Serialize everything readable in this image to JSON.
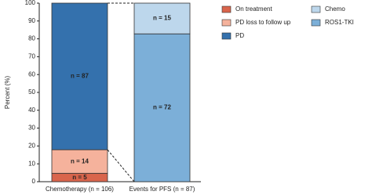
{
  "chart_data": {
    "type": "stacked_bar",
    "y_label": "Percent (%)",
    "categories": [
      "Chemotherapy (n = 106)",
      "Events for PFS (n = 87)"
    ],
    "series": [
      {
        "name": "On treatment",
        "color": "#d9654c",
        "values": [
          4.7,
          null
        ],
        "segment_labels": [
          "n = 5",
          null
        ]
      },
      {
        "name": "PD loss to follow up",
        "color": "#f5b29c",
        "values": [
          13.2,
          null
        ],
        "segment_labels": [
          "n = 14",
          null
        ]
      },
      {
        "name": "PD",
        "color": "#3471ad",
        "values": [
          82.1,
          null
        ],
        "segment_labels": [
          "n = 87",
          null
        ]
      },
      {
        "name": "ROS1-TKI",
        "color": "#7cafd8",
        "values": [
          null,
          82.8
        ],
        "segment_labels": [
          null,
          "n = 72"
        ]
      },
      {
        "name": "Chemo",
        "color": "#bdd7ec",
        "values": [
          null,
          17.2
        ],
        "segment_labels": [
          null,
          "n = 15"
        ]
      }
    ],
    "ylim": [
      0,
      100
    ],
    "yticks": [
      0,
      10,
      20,
      30,
      40,
      50,
      60,
      70,
      80,
      90,
      100
    ]
  }
}
